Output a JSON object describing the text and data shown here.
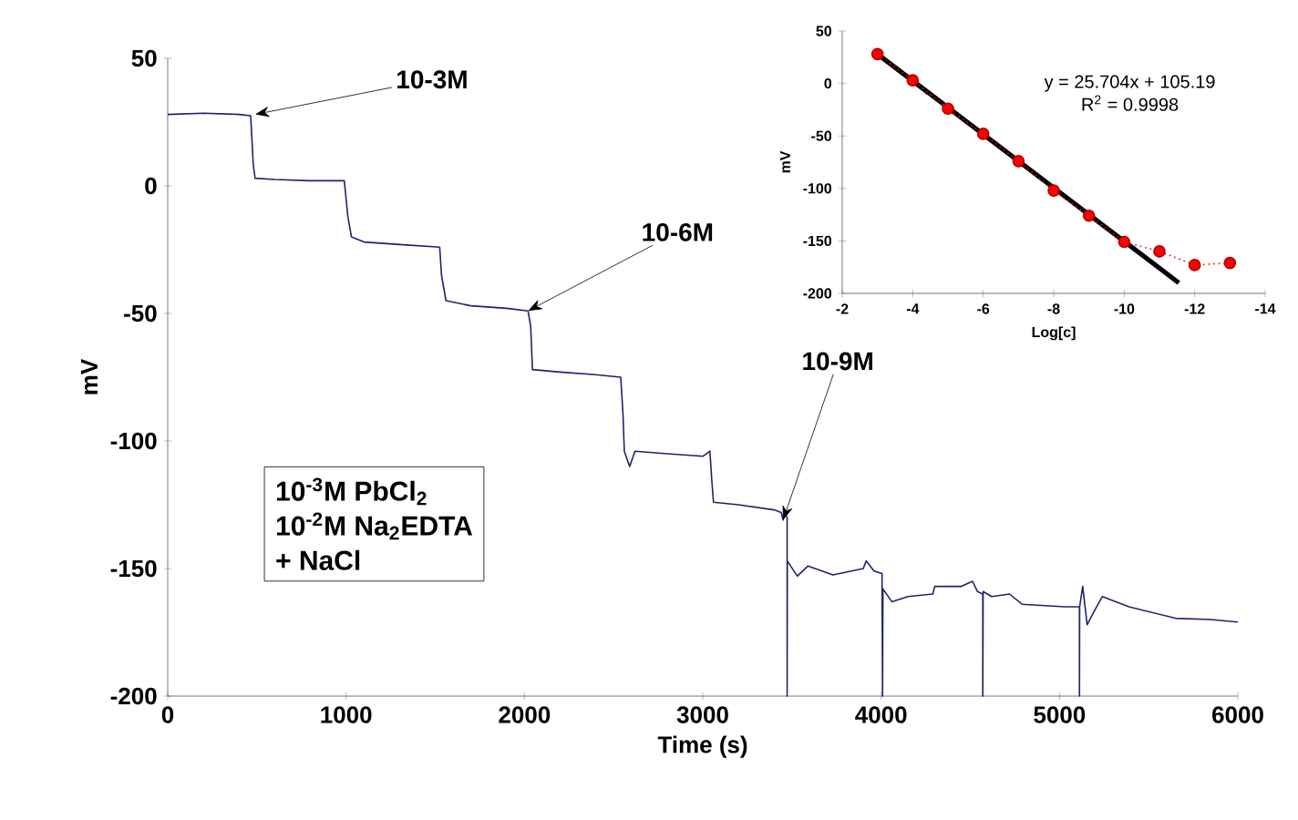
{
  "chart_data": [
    {
      "type": "line",
      "xlabel": "Time (s)",
      "ylabel": "mV",
      "xlim": [
        0,
        6000
      ],
      "xticks": [
        0,
        1000,
        2000,
        3000,
        4000,
        5000,
        6000
      ],
      "ylim": [
        -200,
        50
      ],
      "yticks": [
        -200,
        -150,
        -100,
        -50,
        0,
        50
      ],
      "series": [
        {
          "color": "#1c2470",
          "marker": "none",
          "line_style": "solid",
          "x": [
            0,
            200,
            400,
            465,
            480,
            490,
            600,
            800,
            990,
            1000,
            1010,
            1030,
            1100,
            1300,
            1525,
            1535,
            1560,
            1700,
            1900,
            2020,
            2035,
            2045,
            2200,
            2400,
            2540,
            2553,
            2560,
            2590,
            2620,
            2800,
            3000,
            3040,
            3050,
            3060,
            3200,
            3400,
            3440,
            3450,
            3460,
            3473,
            3473,
            3474,
            3530,
            3590,
            3730,
            3900,
            3916,
            3960,
            4005,
            4008,
            4010,
            4060,
            4150,
            4290,
            4300,
            4450,
            4512,
            4540,
            4570,
            4570,
            4572,
            4620,
            4720,
            4790,
            5030,
            5112,
            5112,
            5113,
            5130,
            5155,
            5200,
            5240,
            5390,
            5650,
            5850,
            6000
          ],
          "values": [
            28,
            28.5,
            28,
            27.5,
            8,
            3,
            2.5,
            2,
            2,
            -5,
            -12,
            -20,
            -22,
            -23,
            -24,
            -35,
            -45,
            -47,
            -48,
            -49,
            -55,
            -72,
            -73,
            -74,
            -75,
            -90,
            -104,
            -110,
            -104,
            -105,
            -106,
            -104,
            -115,
            -124,
            -125,
            -127,
            -128,
            -131,
            -128,
            -130,
            -200,
            -147,
            -153,
            -149,
            -152.5,
            -150,
            -147,
            -151,
            -152,
            -200,
            -158,
            -163,
            -161,
            -160,
            -157,
            -157,
            -155,
            -159,
            -160,
            -200,
            -159,
            -161,
            -160,
            -164,
            -165,
            -165,
            -200,
            -165,
            -157,
            -172,
            -166,
            -161,
            -165,
            -169.5,
            -170,
            -171
          ]
        }
      ],
      "annotations": [
        {
          "text": "10-3M",
          "x": 490,
          "y": 28
        },
        {
          "text": "10-6M",
          "x": 2020,
          "y": -49
        },
        {
          "text": "10-9M",
          "x": 3450,
          "y": -131
        },
        "10$^{-3}$M PbCl$_{2}$",
        "10$^{-2}$M Na$_{2}$EDTA",
        "+ NaCl"
      ]
    },
    {
      "type": "line",
      "xlabel": "Log[c]",
      "ylabel": "mV",
      "xlim": [
        -2,
        -14
      ],
      "xticks": [
        -2,
        -4,
        -6,
        -8,
        -10,
        -12,
        -14
      ],
      "ylim": [
        -200,
        50
      ],
      "yticks": [
        -200,
        -150,
        -100,
        -50,
        0,
        50
      ],
      "series": [
        {
          "type": "line",
          "color": "#000000",
          "marker": "none",
          "line_style": "solid",
          "x": [
            -3,
            -11.55
          ],
          "values": [
            28,
            -190
          ]
        },
        {
          "type": "line",
          "color": "#ff0000",
          "marker": "circle",
          "line_style": "dotted",
          "x": [
            -3,
            -4,
            -5,
            -6,
            -7,
            -8,
            -9,
            -10,
            -11,
            -12,
            -13
          ],
          "values": [
            28,
            3,
            -24,
            -48,
            -74,
            -102,
            -126,
            -151,
            -160,
            -173,
            -171
          ]
        }
      ],
      "annotations": [
        "y = 25.704x + 105.19",
        "R$^{2}$ = 0.9998"
      ]
    }
  ]
}
